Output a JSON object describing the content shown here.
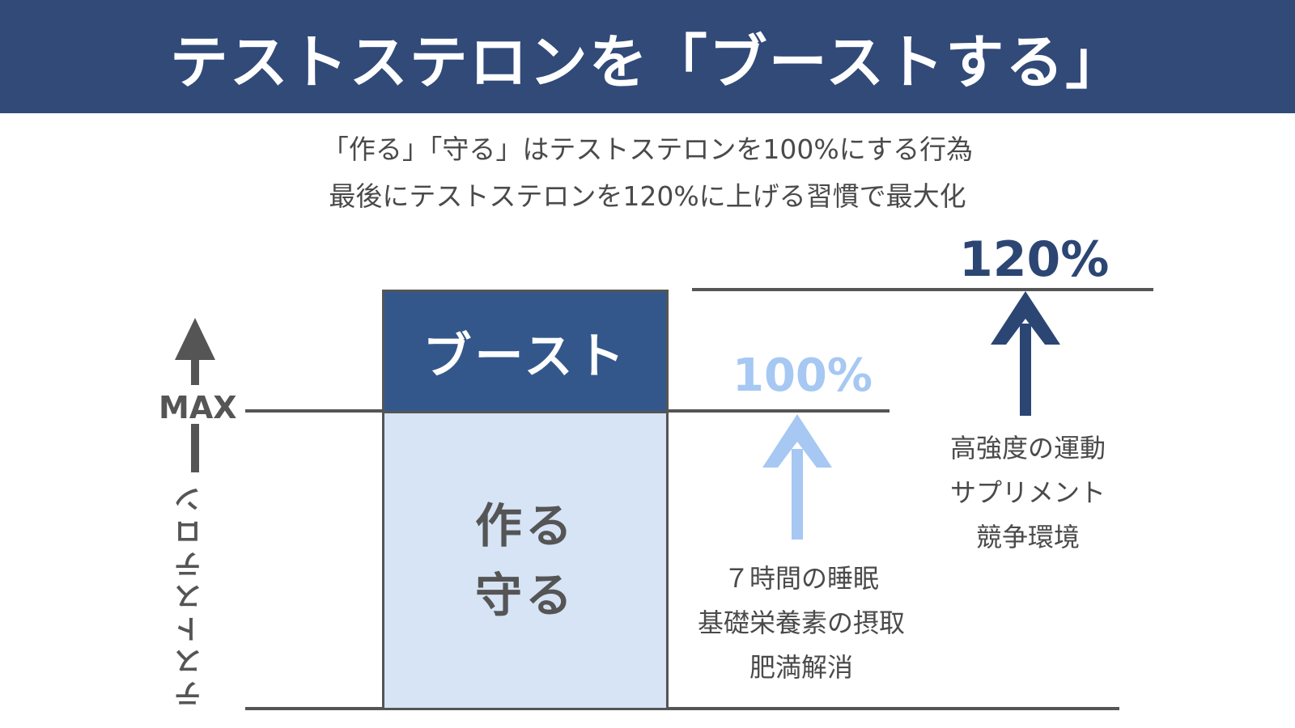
{
  "header": {
    "title": "テストステロンを「ブーストする」",
    "background": "#314a78"
  },
  "subtitle": {
    "line1": "「作る」「守る」はテストステロンを100%にする行為",
    "line2": "最後にテストステロンを120%に上げる習慣で最大化"
  },
  "axis": {
    "max_label": "MAX",
    "label": "テストステロン"
  },
  "boxes": {
    "boost_label": "ブースト",
    "base_label_1": "作る",
    "base_label_2": "守る"
  },
  "levels": {
    "base_pct": "100%",
    "boost_pct": "120%"
  },
  "notes": {
    "base": [
      "７時間の睡眠",
      "基礎栄養素の摂取",
      "肥満解消"
    ],
    "boost": [
      "高強度の運動",
      "サプリメント",
      "競争環境"
    ]
  },
  "colors": {
    "dark_blue": "#2c4673",
    "light_blue": "#a6c8f2",
    "box_light": "#d6e4f5",
    "gray": "#555555"
  }
}
